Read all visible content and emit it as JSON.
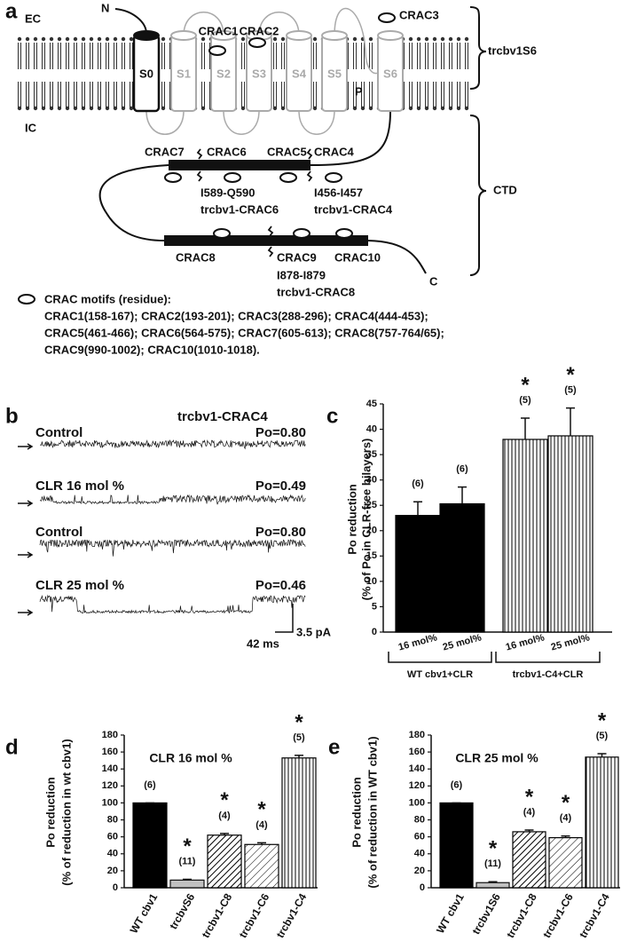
{
  "panel_a": {
    "label": "a",
    "regions": [
      "EC",
      "IC"
    ],
    "termini": [
      "N",
      "C"
    ],
    "segments": [
      "S0",
      "S1",
      "S2",
      "S3",
      "S4",
      "S5",
      "S6"
    ],
    "pore": "P",
    "motifs": [
      "CRAC1",
      "CRAC2",
      "CRAC3",
      "CRAC4",
      "CRAC5",
      "CRAC6",
      "CRAC7",
      "CRAC8",
      "CRAC9",
      "CRAC10"
    ],
    "domains": [
      "trcbv1S6",
      "CTD"
    ],
    "mutations": [
      {
        "site": "I589-Q590",
        "construct": "trcbv1-CRAC6"
      },
      {
        "site": "I456-I457",
        "construct": "trcbv1-CRAC4"
      },
      {
        "site": "I878-I879",
        "construct": "trcbv1-CRAC8"
      }
    ],
    "legend": {
      "title": "CRAC motifs (residue):",
      "lines": [
        "CRAC1(158-167); CRAC2(193-201); CRAC3(288-296); CRAC4(444-453);",
        "CRAC5(461-466); CRAC6(564-575); CRAC7(605-613); CRAC8(757-764/65);",
        "CRAC9(990-1002); CRAC10(1010-1018)."
      ]
    }
  },
  "panel_b": {
    "label": "b",
    "construct": "trcbv1-CRAC4",
    "traces": [
      {
        "condition": "Control",
        "po": "Po=0.80"
      },
      {
        "condition": "CLR 16 mol %",
        "po": "Po=0.49"
      },
      {
        "condition": "Control",
        "po": "Po=0.80"
      },
      {
        "condition": "CLR 25 mol %",
        "po": "Po=0.46"
      }
    ],
    "scale_x": "42 ms",
    "scale_y": "3.5 pA"
  },
  "chart_data": [
    {
      "panel": "c",
      "type": "bar",
      "y_label": [
        "Po reduction",
        "(% of Po in CLR-free bilayers)"
      ],
      "groups": [
        {
          "name": "WT cbv1+CLR",
          "categories": [
            "16 mol%",
            "25 mol%"
          ]
        },
        {
          "name": "trcbv1-C4+CLR",
          "categories": [
            "16 mol%",
            "25 mol%"
          ]
        }
      ],
      "values": [
        23,
        25.3,
        38,
        38.7
      ],
      "errors": [
        2.7,
        3.3,
        4.2,
        5.5
      ],
      "n_labels": [
        "(6)",
        "(6)",
        "(5)",
        "(5)"
      ],
      "significant": [
        false,
        false,
        true,
        true
      ],
      "significance_symbol": "*",
      "patterns": [
        "solid",
        "solid",
        "vertical-stripes",
        "vertical-stripes"
      ],
      "colors": [
        "#000000",
        "#000000",
        "#000000",
        "#000000"
      ],
      "ylim": [
        0,
        45
      ],
      "yticks": [
        0,
        5,
        10,
        15,
        20,
        25,
        30,
        35,
        40,
        45
      ]
    },
    {
      "panel": "d",
      "type": "bar",
      "title": "CLR 16 mol %",
      "y_label": [
        "Po reduction",
        "(% of reduction in wt cbv1)"
      ],
      "categories": [
        "WT cbv1",
        "trcbvS6",
        "trcbv1-C8",
        "trcbv1-C6",
        "trcbv1-C4"
      ],
      "values": [
        100,
        9,
        62,
        51,
        153
      ],
      "errors": [
        0,
        1,
        2,
        2,
        3
      ],
      "n_labels": [
        "(6)",
        "(11)",
        "(4)",
        "(4)",
        "(5)"
      ],
      "significant": [
        false,
        true,
        true,
        true,
        true
      ],
      "significance_symbol": "*",
      "patterns": [
        "solid",
        "solid",
        "diagonal-dense",
        "diagonal",
        "vertical-stripes"
      ],
      "colors": [
        "#000000",
        "#c0c0c0",
        "#000000",
        "#000000",
        "#000000"
      ],
      "ylim": [
        0,
        180
      ],
      "yticks": [
        0,
        20,
        40,
        60,
        80,
        100,
        120,
        140,
        160,
        180
      ]
    },
    {
      "panel": "e",
      "type": "bar",
      "title": "CLR 25 mol %",
      "y_label": [
        "Po reduction",
        "(% of reduction in WT cbv1)"
      ],
      "categories": [
        "WT cbv1",
        "trcbv1S6",
        "trcbv1-C8",
        "trcbv1-C6",
        "trcbv1-C4"
      ],
      "values": [
        100,
        6,
        66,
        59,
        154
      ],
      "errors": [
        0,
        1,
        2,
        2,
        4
      ],
      "n_labels": [
        "(6)",
        "(11)",
        "(4)",
        "(4)",
        "(5)"
      ],
      "significant": [
        false,
        true,
        true,
        true,
        true
      ],
      "significance_symbol": "*",
      "patterns": [
        "solid",
        "solid",
        "diagonal-dense",
        "diagonal",
        "vertical-stripes"
      ],
      "colors": [
        "#000000",
        "#c0c0c0",
        "#000000",
        "#000000",
        "#000000"
      ],
      "ylim": [
        0,
        180
      ],
      "yticks": [
        0,
        20,
        40,
        60,
        80,
        100,
        120,
        140,
        160,
        180
      ]
    }
  ]
}
